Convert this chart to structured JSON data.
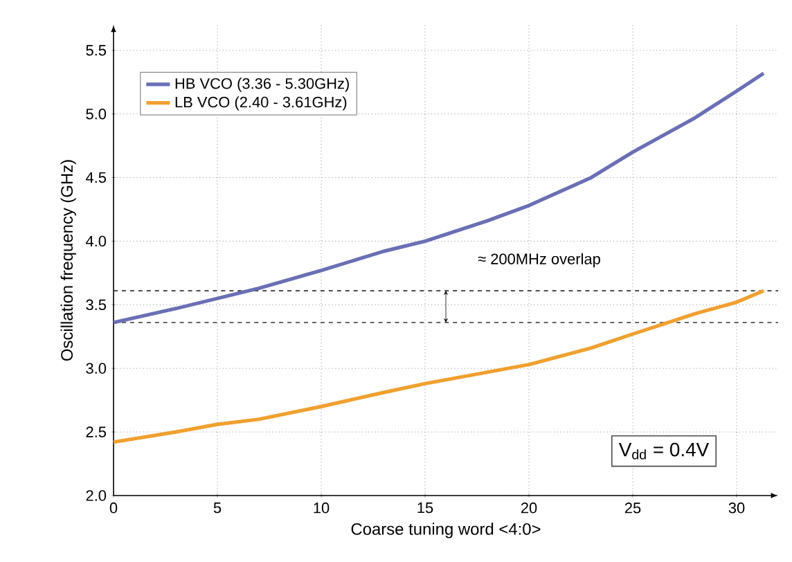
{
  "chart_data": {
    "type": "line",
    "xlabel": "Coarse tuning word <4:0>",
    "ylabel": "Oscillation frequency (GHz)",
    "series": [
      {
        "name": "HB VCO (3.36 - 5.30GHz)",
        "color": "#6a6fb5",
        "x": [
          0,
          3,
          5,
          7,
          10,
          13,
          15,
          18,
          20,
          23,
          25,
          28,
          30,
          31.3
        ],
        "values": [
          3.36,
          3.47,
          3.55,
          3.63,
          3.77,
          3.92,
          4.0,
          4.16,
          4.28,
          4.5,
          4.7,
          4.97,
          5.18,
          5.32
        ]
      },
      {
        "name": "LB VCO (2.40 - 3.61GHz)",
        "color": "#f0a030",
        "x": [
          0,
          3,
          5,
          7,
          10,
          13,
          15,
          18,
          20,
          23,
          25,
          28,
          30,
          31.3
        ],
        "values": [
          2.42,
          2.5,
          2.56,
          2.6,
          2.7,
          2.81,
          2.88,
          2.97,
          3.03,
          3.16,
          3.27,
          3.43,
          3.52,
          3.61
        ]
      }
    ],
    "xlim": [
      0,
      32
    ],
    "ylim": [
      2.0,
      5.7
    ],
    "xticks": [
      0,
      5,
      10,
      15,
      20,
      25,
      30
    ],
    "yticks": [
      {
        "value": 2.0,
        "label": "2.0"
      },
      {
        "value": 2.5,
        "label": "2.5"
      },
      {
        "value": 3.0,
        "label": "3.0"
      },
      {
        "value": 3.5,
        "label": "3.5"
      },
      {
        "value": 4.0,
        "label": "4.0"
      },
      {
        "value": 4.5,
        "label": "4.5"
      },
      {
        "value": 5.0,
        "label": "5.0"
      },
      {
        "value": 5.5,
        "label": "5.5"
      }
    ],
    "ref_lines": [
      {
        "axis": "y",
        "value": 3.36,
        "line_style": "dashed",
        "color": "#333333"
      },
      {
        "axis": "y",
        "value": 3.61,
        "line_style": "dashed",
        "color": "#333333"
      }
    ],
    "annotations": [
      "≈ 200MHz overlap",
      "V$_{dd}$ = 0.4V"
    ],
    "grid": true,
    "legend": "top left",
    "marker": "none",
    "line_style": "solid"
  }
}
